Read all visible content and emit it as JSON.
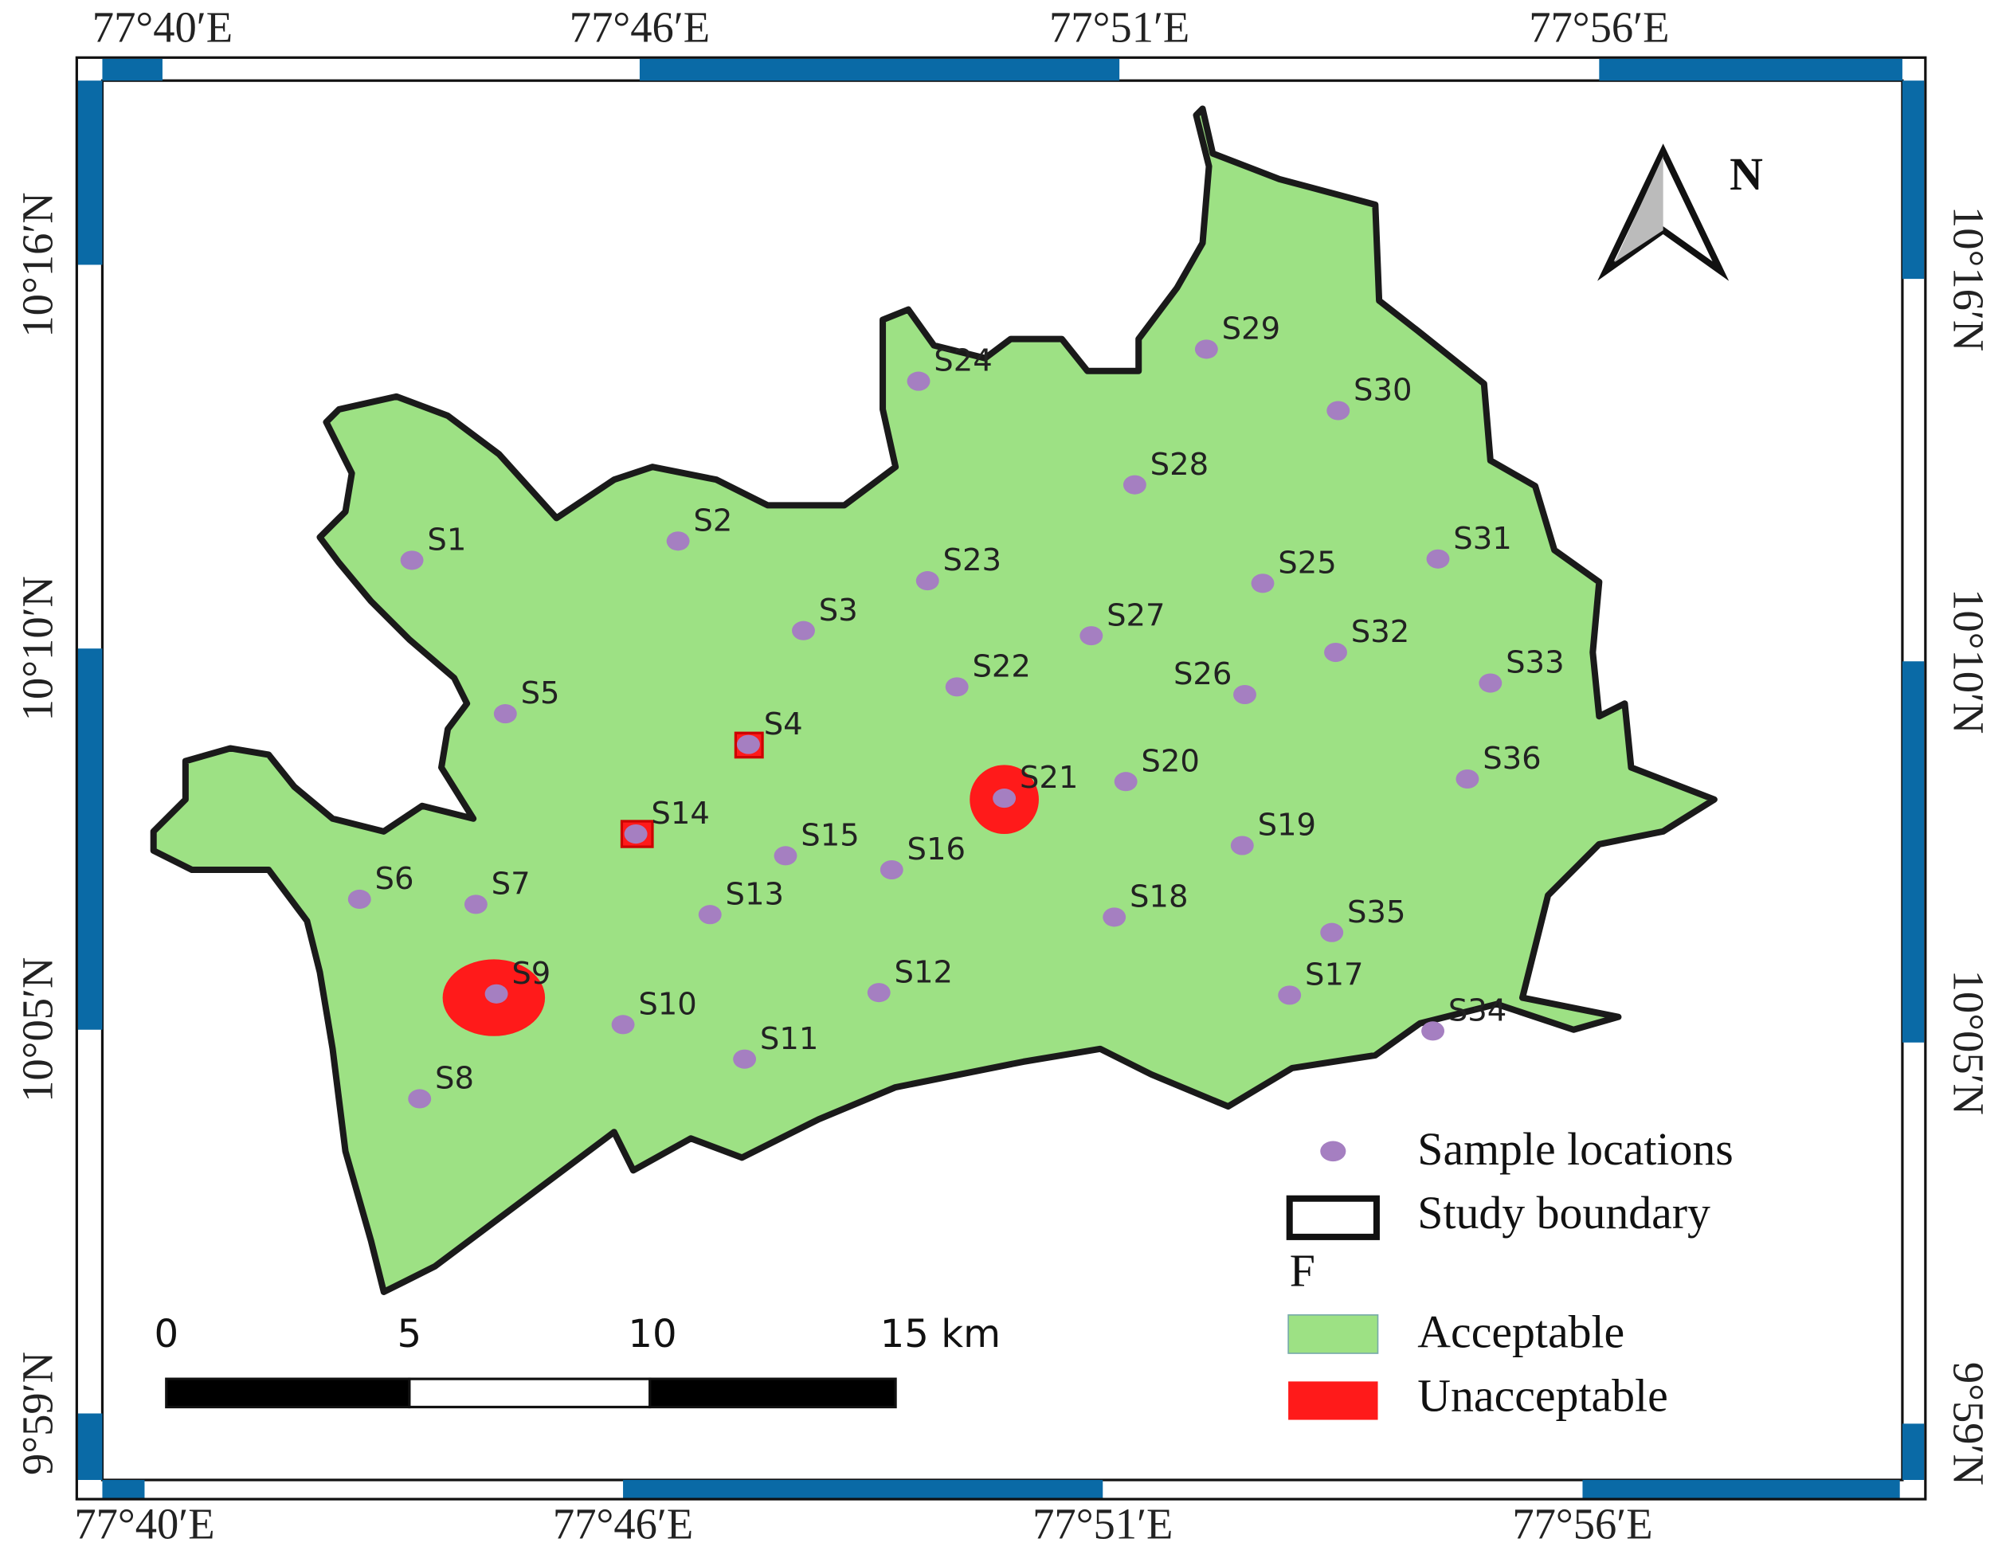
{
  "map": {
    "top_labels": [
      "77°40′E",
      "77°46′E",
      "77°51′E",
      "77°56′E"
    ],
    "bottom_labels": [
      "77°40′E",
      "77°46′E",
      "77°51′E",
      "77°56′E"
    ],
    "left_labels": [
      "10°16′N",
      "10°10′N",
      "10°05′N",
      "9°59′N"
    ],
    "right_labels": [
      "10°16′N",
      "10°10′N",
      "10°05′N",
      "9°59′N"
    ],
    "north": "N",
    "samples": [
      "S1",
      "S2",
      "S3",
      "S4",
      "S5",
      "S6",
      "S7",
      "S8",
      "S9",
      "S10",
      "S11",
      "S12",
      "S13",
      "S14",
      "S15",
      "S16",
      "S17",
      "S18",
      "S19",
      "S20",
      "S21",
      "S22",
      "S23",
      "S24",
      "S25",
      "S26",
      "S27",
      "S28",
      "S29",
      "S30",
      "S31",
      "S32",
      "S33",
      "S34",
      "S35",
      "S36"
    ],
    "scale_bar": [
      "0",
      "5",
      "10",
      "15 km"
    ],
    "legend": {
      "sample": "Sample locations",
      "boundary": "Study boundary",
      "title": "F",
      "classes": [
        "Acceptable",
        "Unacceptable"
      ]
    }
  }
}
